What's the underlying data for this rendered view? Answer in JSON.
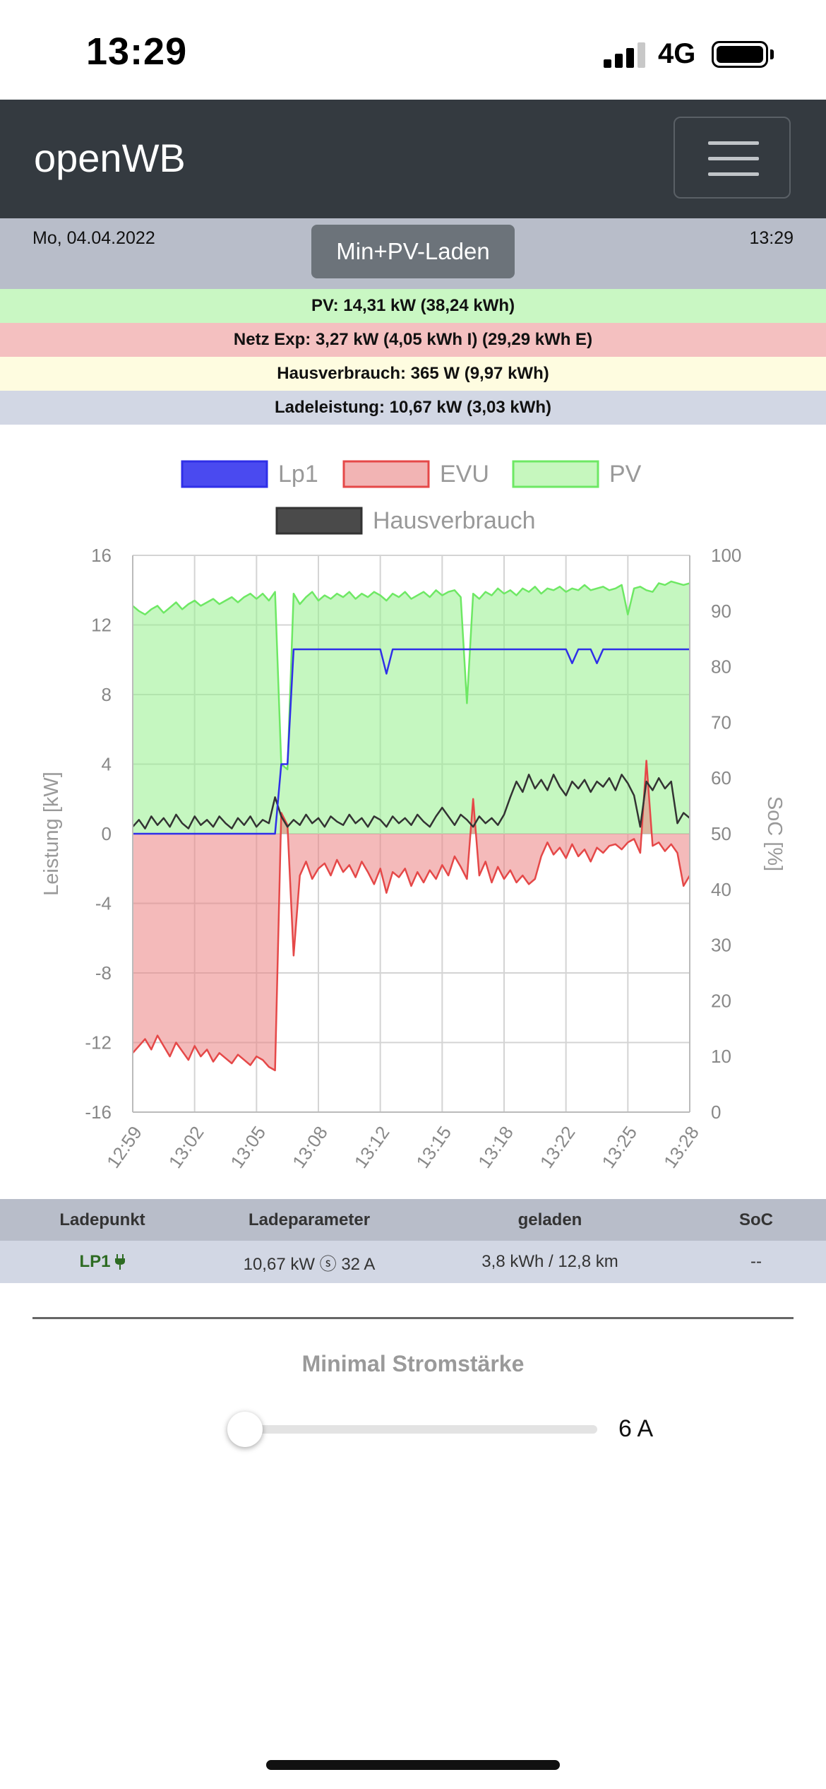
{
  "status_bar": {
    "time": "13:29",
    "network": "4G"
  },
  "navbar": {
    "brand": "openWB"
  },
  "info": {
    "date": "Mo, 04.04.2022",
    "time": "13:29",
    "mode_button": "Min+PV-Laden"
  },
  "summary": {
    "pv": "PV: 14,31 kW (38,24 kWh)",
    "netz": "Netz Exp: 3,27 kW (4,05 kWh I) (29,29 kWh E)",
    "haus": "Hausverbrauch: 365 W (9,97 kWh)",
    "lade": "Ladeleistung: 10,67 kW (3,03 kWh)"
  },
  "chart_data": {
    "type": "line",
    "ylabel": "Leistung [kW]",
    "y2label": "SoC [%]",
    "ylim": [
      -16,
      16
    ],
    "y2lim": [
      0,
      100
    ],
    "y_ticks": [
      16,
      12,
      8,
      4,
      0,
      -4,
      -8,
      -12,
      -16
    ],
    "y2_ticks": [
      100,
      90,
      80,
      70,
      60,
      50,
      40,
      30,
      20,
      10,
      0
    ],
    "x_ticks": [
      "12:59",
      "13:02",
      "13:05",
      "13:08",
      "13:12",
      "13:15",
      "13:18",
      "13:22",
      "13:25",
      "13:28"
    ],
    "grid": true,
    "legend_position": "top",
    "colors": {
      "Lp1": "#2f2fe8",
      "EVU": "#e54848",
      "PV": "#6ee864",
      "Hausverbrauch": "#333333"
    },
    "series": [
      {
        "name": "Lp1",
        "values": [
          0,
          0,
          0,
          0,
          0,
          0,
          0,
          0,
          0,
          0,
          0,
          0,
          0,
          0,
          0,
          0,
          0,
          0,
          0,
          0,
          0,
          0,
          0,
          0,
          4,
          4,
          10.6,
          10.6,
          10.6,
          10.6,
          10.6,
          10.6,
          10.6,
          10.6,
          10.6,
          10.6,
          10.6,
          10.6,
          10.6,
          10.6,
          10.6,
          9.2,
          10.6,
          10.6,
          10.6,
          10.6,
          10.6,
          10.6,
          10.6,
          10.6,
          10.6,
          10.6,
          10.6,
          10.6,
          10.6,
          10.6,
          10.6,
          10.6,
          10.6,
          10.6,
          10.6,
          10.6,
          10.6,
          10.6,
          10.6,
          10.6,
          10.6,
          10.6,
          10.6,
          10.6,
          10.6,
          9.8,
          10.6,
          10.6,
          10.6,
          9.8,
          10.6,
          10.6,
          10.6,
          10.6,
          10.6,
          10.6,
          10.6,
          10.6,
          10.6,
          10.6,
          10.6,
          10.6,
          10.6,
          10.6,
          10.6
        ]
      },
      {
        "name": "EVU",
        "values": [
          -12.6,
          -12.2,
          -11.8,
          -12.4,
          -11.6,
          -12.2,
          -12.8,
          -12.0,
          -12.5,
          -13.0,
          -12.2,
          -12.8,
          -12.4,
          -13.1,
          -12.6,
          -12.9,
          -13.2,
          -12.7,
          -13.0,
          -13.3,
          -12.8,
          -13.0,
          -13.4,
          -13.6,
          1.2,
          0.5,
          -7.0,
          -2.4,
          -1.6,
          -2.6,
          -2.0,
          -1.7,
          -2.4,
          -1.5,
          -2.2,
          -1.8,
          -2.5,
          -1.6,
          -2.2,
          -2.9,
          -2.0,
          -3.4,
          -2.2,
          -2.5,
          -2.0,
          -3.0,
          -2.2,
          -2.8,
          -2.1,
          -2.6,
          -1.8,
          -2.4,
          -1.3,
          -1.9,
          -2.6,
          2.0,
          -2.4,
          -1.6,
          -2.8,
          -1.9,
          -2.6,
          -2.1,
          -2.8,
          -2.4,
          -2.9,
          -2.6,
          -1.3,
          -0.5,
          -1.2,
          -0.8,
          -1.4,
          -0.6,
          -1.3,
          -0.9,
          -1.6,
          -0.8,
          -1.1,
          -0.7,
          -0.6,
          -0.9,
          -0.5,
          -0.3,
          -1.1,
          4.2,
          -0.7,
          -0.5,
          -1.0,
          -0.6,
          -1.1,
          -3.0,
          -2.4
        ]
      },
      {
        "name": "PV",
        "values": [
          13.1,
          12.8,
          12.6,
          12.9,
          13.1,
          12.7,
          13.0,
          13.3,
          12.9,
          13.2,
          13.4,
          13.1,
          13.3,
          13.5,
          13.2,
          13.4,
          13.6,
          13.3,
          13.6,
          13.8,
          13.5,
          13.8,
          13.4,
          13.9,
          4.0,
          3.7,
          13.8,
          13.2,
          13.6,
          13.9,
          13.4,
          13.7,
          13.5,
          13.8,
          13.6,
          13.9,
          13.5,
          13.8,
          13.6,
          13.9,
          13.7,
          13.4,
          13.8,
          13.6,
          13.9,
          13.5,
          13.7,
          13.9,
          13.6,
          14.0,
          13.7,
          13.9,
          14.0,
          13.6,
          7.5,
          13.8,
          13.5,
          13.9,
          13.7,
          14.1,
          13.8,
          14.0,
          13.7,
          14.1,
          13.9,
          14.2,
          13.8,
          14.1,
          14.0,
          14.2,
          13.9,
          14.1,
          14.0,
          14.3,
          14.0,
          14.1,
          14.2,
          14.0,
          14.1,
          14.3,
          12.6,
          14.1,
          14.2,
          14.0,
          13.9,
          14.4,
          14.3,
          14.5,
          14.4,
          14.3,
          14.4
        ]
      },
      {
        "name": "Hausverbrauch",
        "values": [
          0.4,
          0.8,
          0.3,
          1.0,
          0.5,
          0.9,
          0.4,
          1.1,
          0.6,
          0.3,
          1.0,
          0.5,
          0.8,
          0.4,
          1.0,
          0.6,
          0.3,
          0.9,
          0.5,
          1.0,
          0.4,
          0.8,
          0.6,
          2.1,
          1.0,
          0.4,
          0.8,
          0.5,
          1.1,
          0.6,
          0.9,
          0.4,
          1.0,
          0.7,
          0.5,
          1.1,
          0.6,
          0.9,
          0.4,
          1.0,
          0.8,
          0.4,
          1.0,
          0.6,
          0.9,
          0.5,
          1.1,
          0.7,
          0.4,
          1.0,
          1.5,
          1.0,
          0.5,
          1.1,
          0.8,
          0.4,
          1.0,
          0.6,
          0.9,
          0.5,
          1.1,
          2.1,
          3.0,
          2.4,
          3.4,
          2.6,
          3.1,
          2.5,
          3.4,
          2.7,
          2.2,
          3.0,
          2.6,
          3.1,
          2.4,
          3.0,
          2.7,
          3.2,
          2.5,
          3.4,
          2.9,
          2.2,
          0.4,
          3.0,
          2.5,
          3.2,
          2.6,
          3.0,
          0.6,
          1.2,
          0.9
        ]
      }
    ]
  },
  "table": {
    "headers": {
      "ladepunkt": "Ladepunkt",
      "ladeparameter": "Ladeparameter",
      "geladen": "geladen",
      "soc": "SoC"
    },
    "row": {
      "ladepunkt": "LP1",
      "plug_icon": "plug-icon",
      "ladeparameter": "10,67 kW ⓢ 32 A",
      "geladen": "3,8 kWh / 12,8 km",
      "soc": "--"
    }
  },
  "slider": {
    "label": "Minimal Stromstärke",
    "value": "6 A",
    "fraction": 0.0
  }
}
